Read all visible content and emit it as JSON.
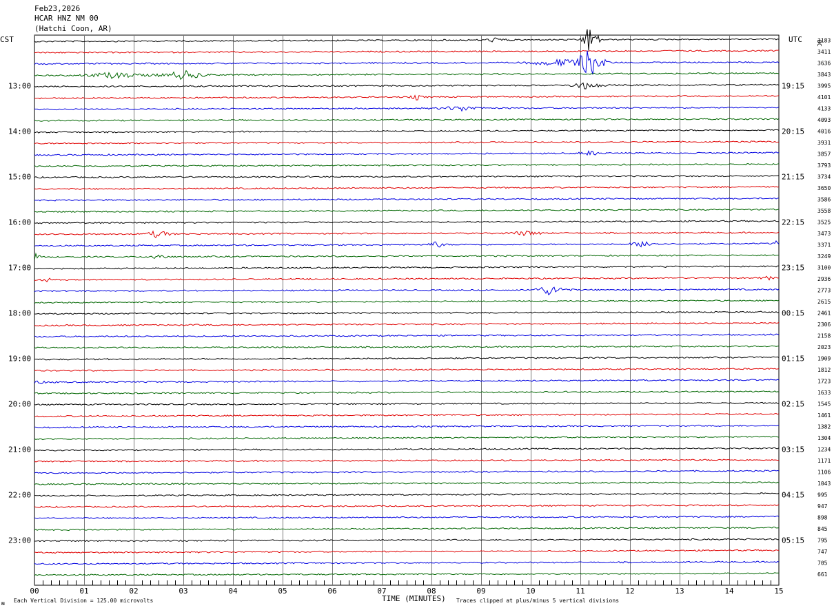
{
  "header": {
    "date": "Feb23,2026",
    "station": "HCAR HNZ NM 00",
    "location": "(Hatchi Coon, AR)"
  },
  "labels": {
    "left_zone": "CST",
    "right_zone": "UTC",
    "dc_heading": "DC",
    "x_axis_title": "TIME (MINUTES)",
    "division_note": "Each Vertical Division =  125.00 microvolts",
    "clip_note": "Traces clipped at plus/minus 5 vertical divisions",
    "corner_mark": "ᴍ"
  },
  "colors": {
    "trace_cycle": [
      "#000000",
      "#e00000",
      "#0000e0",
      "#006600"
    ],
    "grid": "#000000",
    "background": "#ffffff"
  },
  "chart_data": {
    "type": "line",
    "description_type": "helicorder",
    "x": [
      0,
      1,
      2,
      3,
      4,
      5,
      6,
      7,
      8,
      9,
      10,
      11,
      12,
      13,
      14,
      15
    ],
    "x_tick_labels": [
      "00",
      "01",
      "02",
      "03",
      "04",
      "05",
      "06",
      "07",
      "08",
      "09",
      "10",
      "11",
      "12",
      "13",
      "14",
      "15"
    ],
    "xlabel": "TIME (MINUTES)",
    "xlim": [
      0,
      15
    ],
    "minutes_per_line": 15,
    "left_hour_labels": [
      "13:00",
      "14:00",
      "15:00",
      "16:00",
      "17:00",
      "18:00",
      "19:00",
      "20:00",
      "21:00",
      "22:00",
      "23:00"
    ],
    "right_hour_labels": [
      "19:15",
      "20:15",
      "21:15",
      "22:15",
      "23:15",
      "00:15",
      "01:15",
      "02:15",
      "03:15",
      "04:15",
      "05:15"
    ],
    "hour_label_line_index": [
      4,
      8,
      12,
      16,
      20,
      24,
      28,
      32,
      36,
      40,
      44
    ],
    "dc_offsets": [
      "3183",
      "3411",
      "3636",
      "3843",
      "3995",
      "4101",
      "4133",
      "4093",
      "4016",
      "3931",
      "3857",
      "3793",
      "3734",
      "3650",
      "3586",
      "3558",
      "3525",
      "3473",
      "3371",
      "3249",
      "3100",
      "2936",
      "2773",
      "2615",
      "2461",
      "2306",
      "2158",
      "2023",
      "1909",
      "1812",
      "1723",
      "1633",
      "1545",
      "1461",
      "1382",
      "1304",
      "1234",
      "1171",
      "1106",
      "1043",
      "995",
      "947",
      "898",
      "845",
      "795",
      "747",
      "705",
      "661"
    ],
    "line_count": 48,
    "units_per_division": 125.0,
    "events": [
      {
        "line": 0,
        "minute": 9.3,
        "amp": 0.8,
        "dur": 0.4
      },
      {
        "line": 0,
        "minute": 11.2,
        "amp": 6,
        "dur": 0.3
      },
      {
        "line": 2,
        "minute": 10.6,
        "amp": 1.2,
        "dur": 1.2
      },
      {
        "line": 2,
        "minute": 11.2,
        "amp": 5,
        "dur": 0.5
      },
      {
        "line": 3,
        "minute": 1.6,
        "amp": 1.0,
        "dur": 1.2
      },
      {
        "line": 3,
        "minute": 3.0,
        "amp": 1.6,
        "dur": 0.8
      },
      {
        "line": 4,
        "minute": 11.1,
        "amp": 1.2,
        "dur": 0.6
      },
      {
        "line": 5,
        "minute": 7.7,
        "amp": 1.0,
        "dur": 0.2
      },
      {
        "line": 6,
        "minute": 8.6,
        "amp": 0.9,
        "dur": 0.8
      },
      {
        "line": 10,
        "minute": 11.2,
        "amp": 0.8,
        "dur": 0.4
      },
      {
        "line": 17,
        "minute": 2.5,
        "amp": 1.5,
        "dur": 0.4
      },
      {
        "line": 17,
        "minute": 9.9,
        "amp": 0.8,
        "dur": 0.6
      },
      {
        "line": 18,
        "minute": 8.1,
        "amp": 1.2,
        "dur": 0.3
      },
      {
        "line": 18,
        "minute": 12.3,
        "amp": 1.2,
        "dur": 0.5
      },
      {
        "line": 18,
        "minute": 14.95,
        "amp": 1.0,
        "dur": 0.1
      },
      {
        "line": 19,
        "minute": 0.05,
        "amp": 1.5,
        "dur": 0.15
      },
      {
        "line": 19,
        "minute": 2.5,
        "amp": 1.0,
        "dur": 0.4
      },
      {
        "line": 21,
        "minute": 0.2,
        "amp": 0.6,
        "dur": 0.4
      },
      {
        "line": 21,
        "minute": 14.8,
        "amp": 0.6,
        "dur": 0.3
      },
      {
        "line": 22,
        "minute": 10.4,
        "amp": 1.8,
        "dur": 0.6
      },
      {
        "line": 30,
        "minute": 0.1,
        "amp": 0.5,
        "dur": 0.3
      }
    ]
  }
}
